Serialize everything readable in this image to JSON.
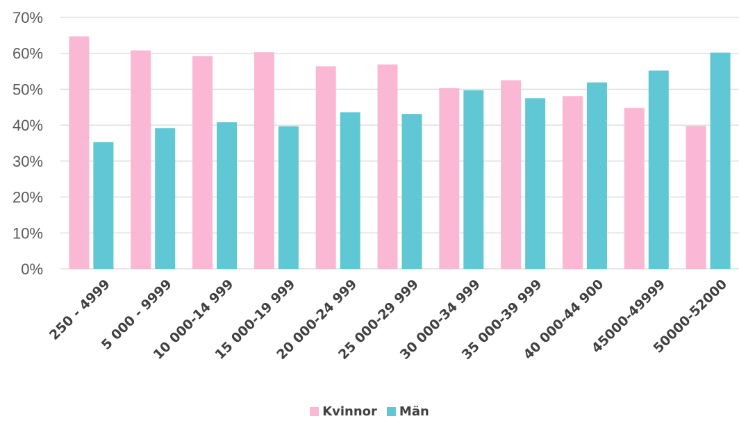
{
  "chart_data": {
    "type": "bar",
    "categories": [
      "250 - 4999",
      "5 000 - 9999",
      "10 000-14 999",
      "15 000-19 999",
      "20 000-24 999",
      "25 000-29 999",
      "30 000-34 999",
      "35 000-39 999",
      "40 000-44 900",
      "45000-49999",
      "50000-52000"
    ],
    "series": [
      {
        "name": "Kvinnor",
        "color": "#FBB8D5",
        "values": [
          64.7,
          60.8,
          59.2,
          60.3,
          56.4,
          56.9,
          50.3,
          52.5,
          48.1,
          44.8,
          39.8
        ]
      },
      {
        "name": "Män",
        "color": "#5FC8D4",
        "values": [
          35.3,
          39.2,
          40.8,
          39.7,
          43.6,
          43.1,
          49.7,
          47.5,
          51.9,
          55.2,
          60.2
        ]
      }
    ],
    "y_ticks": [
      "0%",
      "10%",
      "20%",
      "30%",
      "40%",
      "50%",
      "60%",
      "70%"
    ],
    "ylim": [
      0,
      70
    ],
    "grid": true,
    "legend_position": "bottom",
    "title": "",
    "xlabel": "",
    "ylabel": ""
  }
}
